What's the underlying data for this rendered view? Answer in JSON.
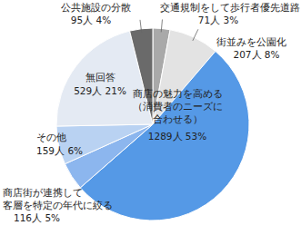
{
  "chart_data": {
    "type": "pie",
    "categories": [
      "交通規制をして歩行者優先道路",
      "街並みを公園化",
      "商店の魅力を高める\n（消費者のニーズに\n合わせる）",
      "商店街が連携して\n客層を特定の年代に絞る",
      "その他",
      "無回答",
      "公共施設の分散"
    ],
    "values": [
      71,
      207,
      1289,
      116,
      159,
      529,
      95
    ],
    "value_labels": [
      "71人 3%",
      "207人 8%",
      "1289人 53%",
      "116人 5%",
      "159人 6%",
      "529人 21%",
      "95人 4%"
    ],
    "colors": [
      "#a9a9a9",
      "#e3e3e3",
      "#5599e6",
      "#8cb6ee",
      "#b9d2f2",
      "#e4eaf3",
      "#6a6a6a"
    ],
    "data_labels": true
  }
}
